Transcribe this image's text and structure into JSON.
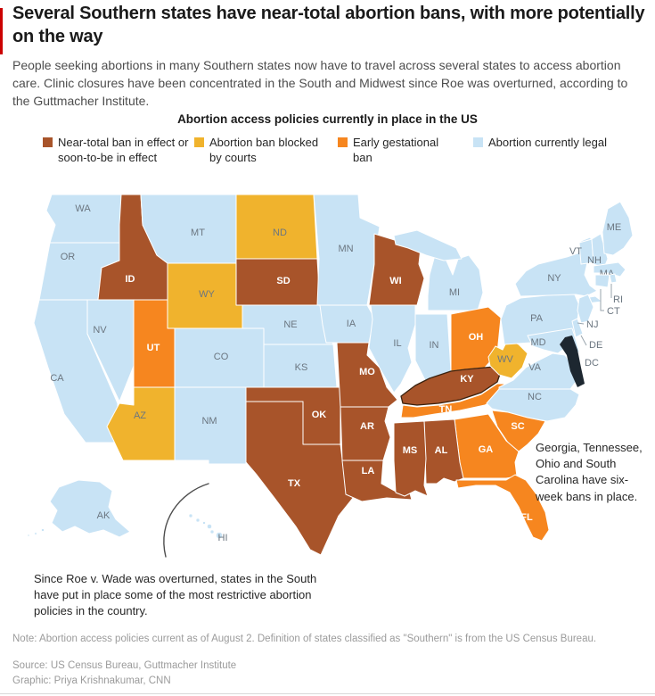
{
  "header": {
    "title": "Several Southern states have near-total abortion bans, with more potentially on the way",
    "subtitle": "People seeking abortions in many Southern states now have to travel across several states to access abortion care. Clinic closures have been concentrated in the South and Midwest since Roe was overturned, according to the Guttmacher Institute."
  },
  "legend": {
    "title": "Abortion access policies currently in place in the US",
    "items": [
      {
        "key": "near_total",
        "label": "Near-total ban in effect or soon-to-be in effect",
        "color": "#a8542a"
      },
      {
        "key": "blocked",
        "label": "Abortion ban blocked by courts",
        "color": "#f0b32d"
      },
      {
        "key": "early",
        "label": "Early gestational ban",
        "color": "#f6861f"
      },
      {
        "key": "legal",
        "label": "Abortion currently legal",
        "color": "#c8e3f5"
      }
    ]
  },
  "map": {
    "states": [
      {
        "code": "WA",
        "category": "legal"
      },
      {
        "code": "OR",
        "category": "legal"
      },
      {
        "code": "CA",
        "category": "legal"
      },
      {
        "code": "NV",
        "category": "legal"
      },
      {
        "code": "ID",
        "category": "near_total"
      },
      {
        "code": "MT",
        "category": "legal"
      },
      {
        "code": "WY",
        "category": "blocked"
      },
      {
        "code": "UT",
        "category": "early"
      },
      {
        "code": "CO",
        "category": "legal"
      },
      {
        "code": "AZ",
        "category": "blocked"
      },
      {
        "code": "NM",
        "category": "legal"
      },
      {
        "code": "ND",
        "category": "blocked"
      },
      {
        "code": "SD",
        "category": "near_total"
      },
      {
        "code": "NE",
        "category": "legal"
      },
      {
        "code": "KS",
        "category": "legal"
      },
      {
        "code": "OK",
        "category": "near_total"
      },
      {
        "code": "TX",
        "category": "near_total"
      },
      {
        "code": "MN",
        "category": "legal"
      },
      {
        "code": "IA",
        "category": "legal"
      },
      {
        "code": "MO",
        "category": "near_total"
      },
      {
        "code": "AR",
        "category": "near_total"
      },
      {
        "code": "LA",
        "category": "near_total"
      },
      {
        "code": "WI",
        "category": "near_total"
      },
      {
        "code": "IL",
        "category": "legal"
      },
      {
        "code": "IN",
        "category": "legal"
      },
      {
        "code": "MI",
        "category": "legal"
      },
      {
        "code": "OH",
        "category": "early"
      },
      {
        "code": "KY",
        "category": "near_total"
      },
      {
        "code": "TN",
        "category": "early"
      },
      {
        "code": "WV",
        "category": "blocked"
      },
      {
        "code": "VA",
        "category": "legal"
      },
      {
        "code": "NC",
        "category": "legal"
      },
      {
        "code": "SC",
        "category": "early"
      },
      {
        "code": "GA",
        "category": "early"
      },
      {
        "code": "AL",
        "category": "near_total"
      },
      {
        "code": "MS",
        "category": "near_total"
      },
      {
        "code": "FL",
        "category": "early"
      },
      {
        "code": "PA",
        "category": "legal"
      },
      {
        "code": "NY",
        "category": "legal"
      },
      {
        "code": "VT",
        "category": "legal"
      },
      {
        "code": "NH",
        "category": "legal"
      },
      {
        "code": "ME",
        "category": "legal"
      },
      {
        "code": "MA",
        "category": "legal"
      },
      {
        "code": "RI",
        "category": "legal"
      },
      {
        "code": "CT",
        "category": "legal"
      },
      {
        "code": "NJ",
        "category": "legal"
      },
      {
        "code": "DE",
        "category": "legal"
      },
      {
        "code": "MD",
        "category": "legal"
      },
      {
        "code": "DC",
        "category": "legal"
      },
      {
        "code": "AK",
        "category": "legal"
      },
      {
        "code": "HI",
        "category": "legal"
      }
    ],
    "annotations": {
      "southeast": "Georgia, Tennessee, Ohio and South Carolina have six-week bans in place.",
      "southwest": "Since Roe v. Wade was overturned, states in the South have put in place some of the most restrictive abortion policies in the country."
    }
  },
  "footer": {
    "note": "Note: Abortion access policies current as of August 2. Definition of states classified as \"Southern\" is from the US Census Bureau.",
    "source": "Source: US Census Bureau, Guttmacher Institute",
    "graphic": "Graphic: Priya Krishnakumar, CNN"
  }
}
